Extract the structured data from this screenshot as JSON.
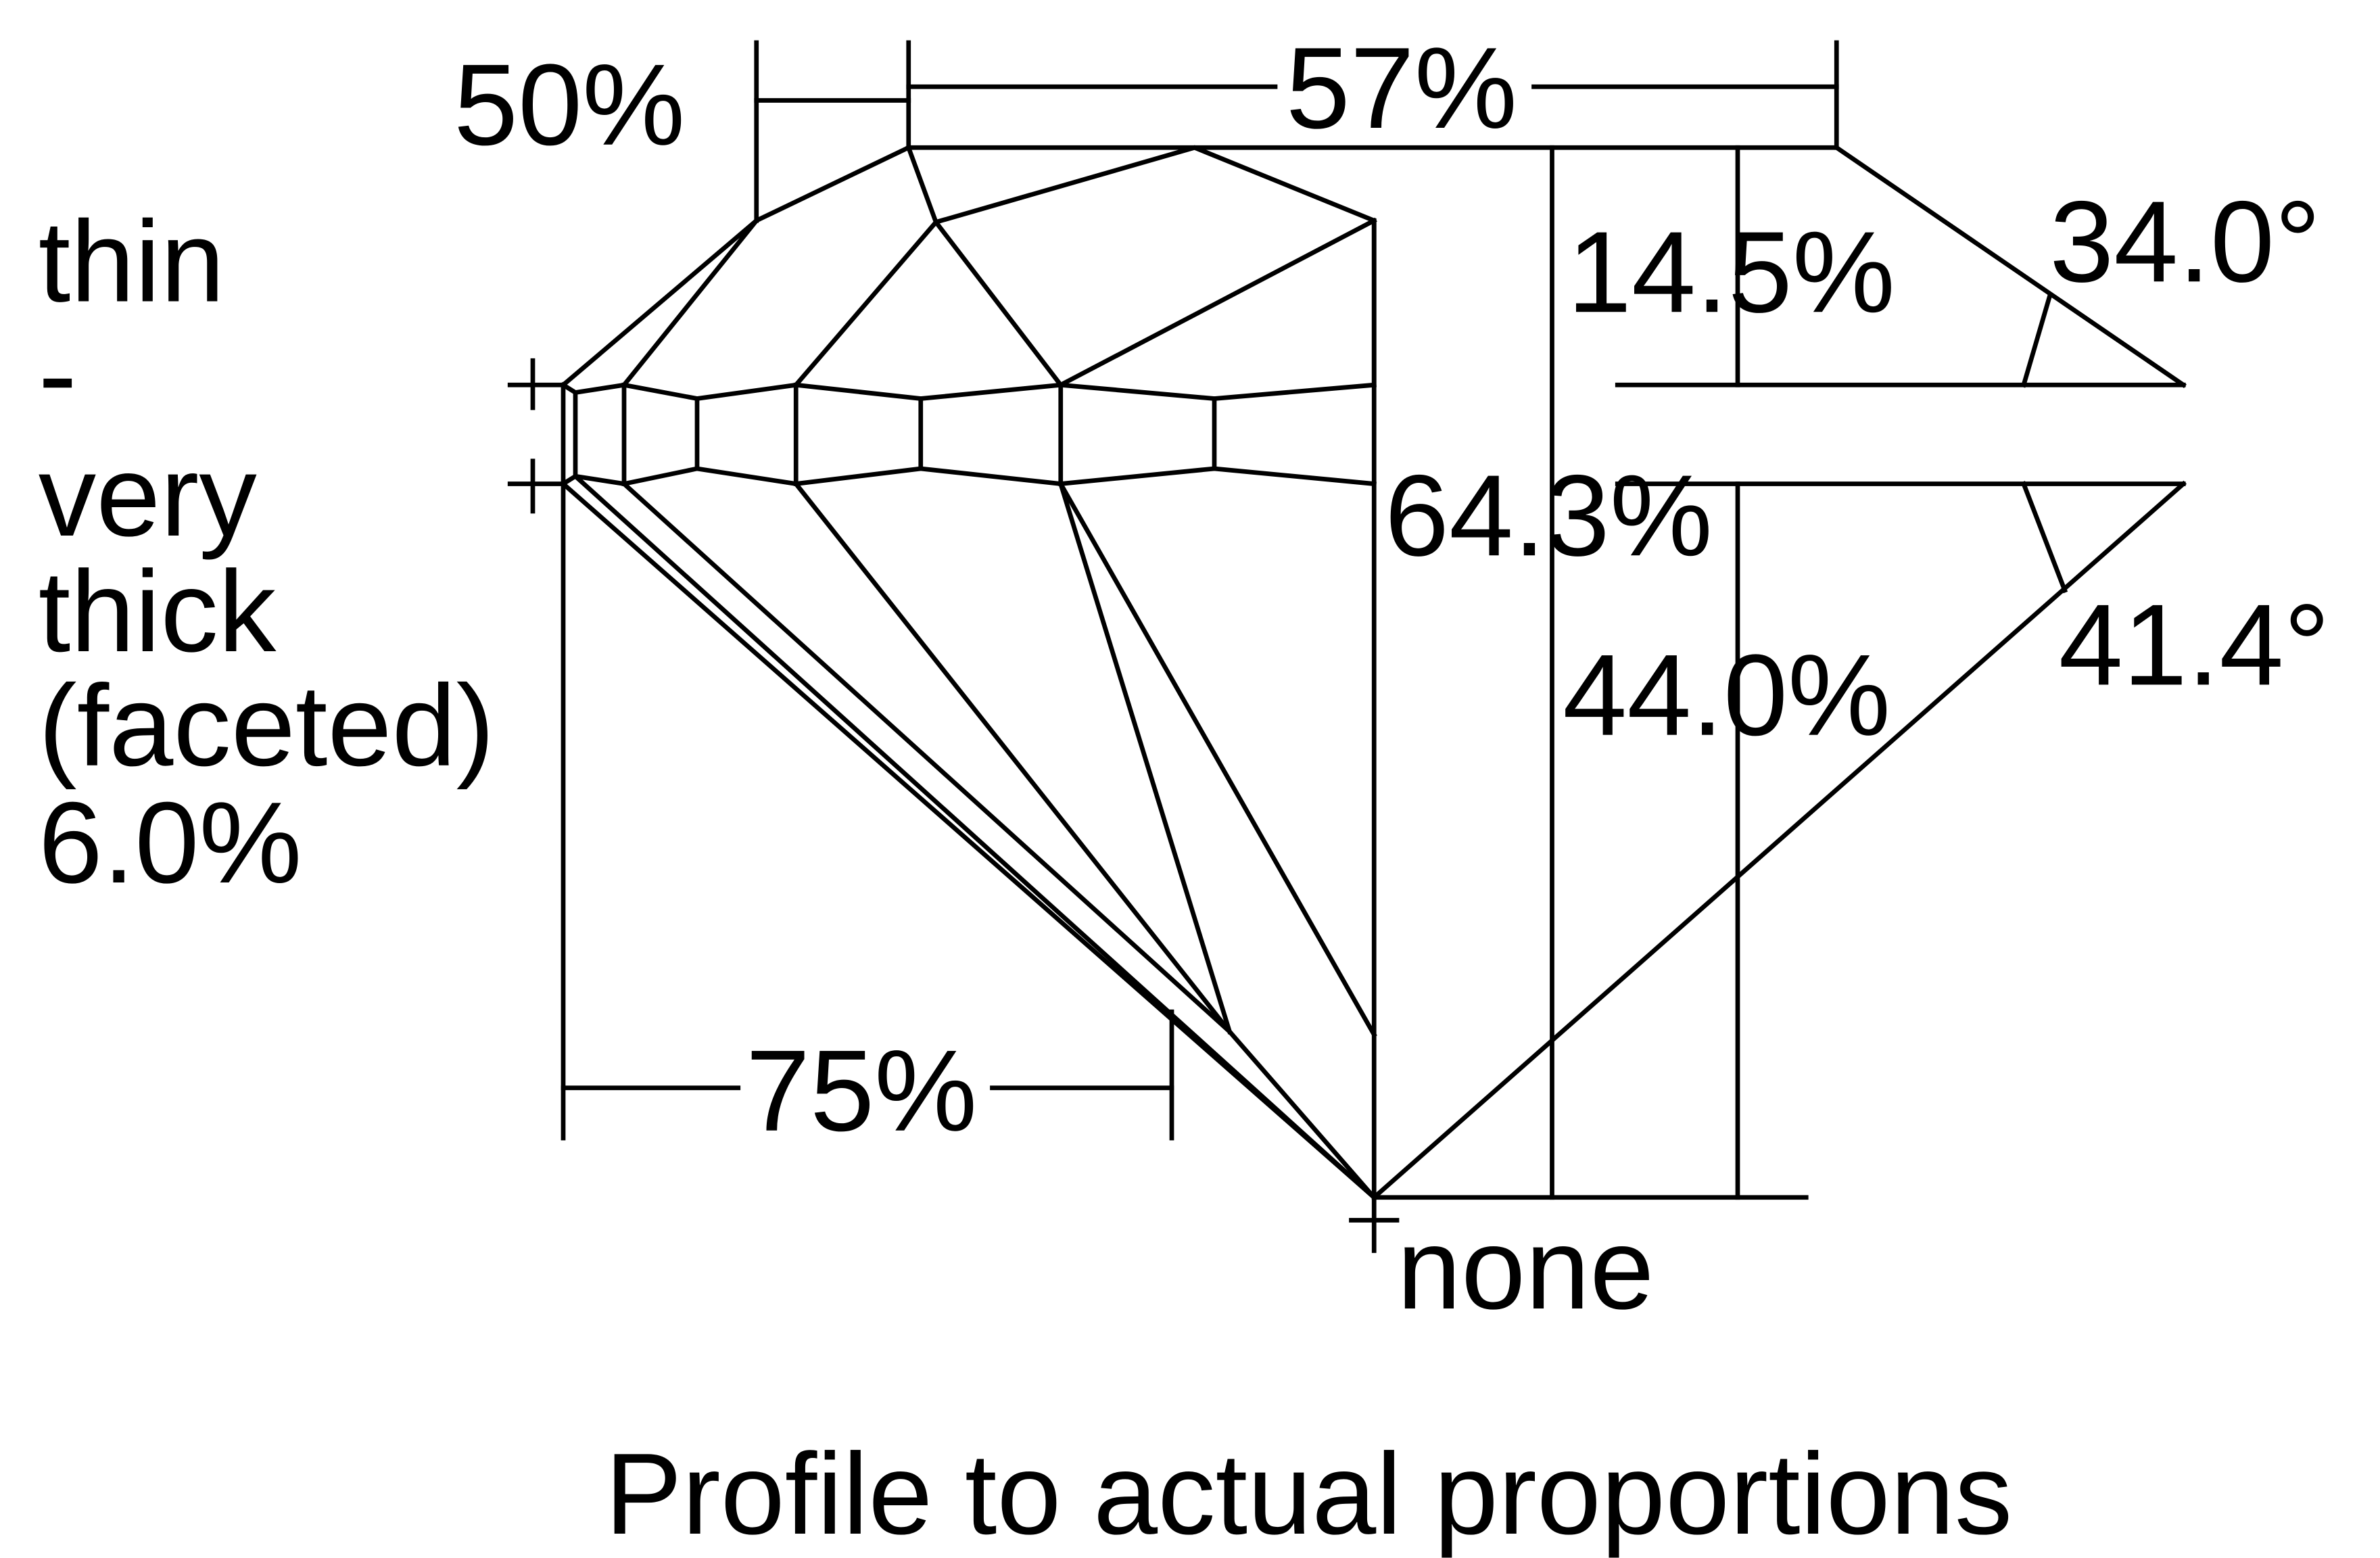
{
  "labels": {
    "table_offset": "50%",
    "table": "57%",
    "crown_height": "14.5%",
    "crown_angle": "34.0°",
    "girdle": [
      "thin",
      "-",
      "very",
      "thick",
      "(faceted)",
      "6.0%"
    ],
    "total_depth": "64.3%",
    "pavilion_depth": "44.0%",
    "pavilion_angle": "41.4°",
    "lower_half": "75%",
    "culet": "none"
  },
  "caption": "Profile to actual proportions"
}
